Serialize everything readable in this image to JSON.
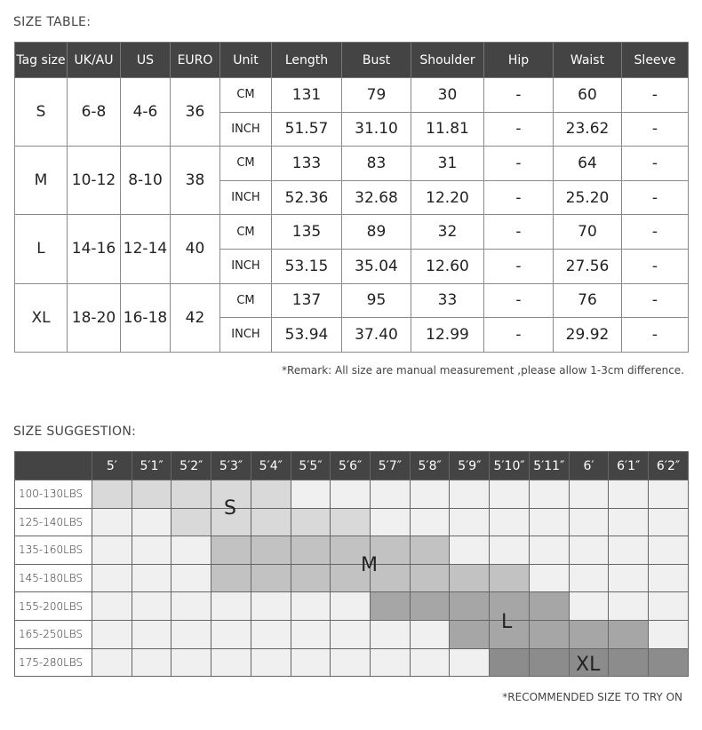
{
  "size_table": {
    "title": "SIZE TABLE:",
    "headers": [
      "Tag size",
      "UK/AU",
      "US",
      "EURO",
      "Unit",
      "Length",
      "Bust",
      "Shoulder",
      "Hip",
      "Waist",
      "Sleeve"
    ],
    "rows": [
      {
        "tag": "S",
        "uk": "6-8",
        "us": "4-6",
        "euro": "36",
        "cm": [
          "131",
          "79",
          "30",
          "-",
          "60",
          "-"
        ],
        "inch": [
          "51.57",
          "31.10",
          "11.81",
          "-",
          "23.62",
          "-"
        ]
      },
      {
        "tag": "M",
        "uk": "10-12",
        "us": "8-10",
        "euro": "38",
        "cm": [
          "133",
          "83",
          "31",
          "-",
          "64",
          "-"
        ],
        "inch": [
          "52.36",
          "32.68",
          "12.20",
          "-",
          "25.20",
          "-"
        ]
      },
      {
        "tag": "L",
        "uk": "14-16",
        "us": "12-14",
        "euro": "40",
        "cm": [
          "135",
          "89",
          "32",
          "-",
          "70",
          "-"
        ],
        "inch": [
          "53.15",
          "35.04",
          "12.60",
          "-",
          "27.56",
          "-"
        ]
      },
      {
        "tag": "XL",
        "uk": "18-20",
        "us": "16-18",
        "euro": "42",
        "cm": [
          "137",
          "95",
          "33",
          "-",
          "76",
          "-"
        ],
        "inch": [
          "53.94",
          "37.40",
          "12.99",
          "-",
          "29.92",
          "-"
        ]
      }
    ],
    "unit_cm": "CM",
    "unit_inch": "INCH",
    "remark": "*Remark: All size are manual measurement ,please allow 1-3cm difference."
  },
  "size_suggestion": {
    "title": "SIZE SUGGESTION:",
    "heights": [
      "5′",
      "5′1″",
      "5′2″",
      "5′3″",
      "5′4″",
      "5′5″",
      "5′6″",
      "5′7″",
      "5′8″",
      "5′9″",
      "5′10″",
      "5′11″",
      "6′",
      "6′1″",
      "6′2″"
    ],
    "weights": [
      "100-130LBS",
      "125-140LBS",
      "135-160LBS",
      "145-180LBS",
      "155-200LBS",
      "165-250LBS",
      "175-280LBS"
    ],
    "grid": [
      "SSSSS..........",
      "..SSSSS........",
      "...MMMMMM......",
      "...MMMMMMMM....",
      ".......LLLLL...",
      ".........LLLLL.",
      "..........XXXXX"
    ],
    "shade_colors": {
      "S": "#d9d9d9",
      "M": "#c2c2c2",
      "L": "#a6a6a6",
      "XL": "#8c8c8c"
    },
    "labels": {
      "S": "S",
      "M": "M",
      "L": "L",
      "XL": "XL"
    },
    "note": "*RECOMMENDED SIZE TO TRY ON"
  }
}
